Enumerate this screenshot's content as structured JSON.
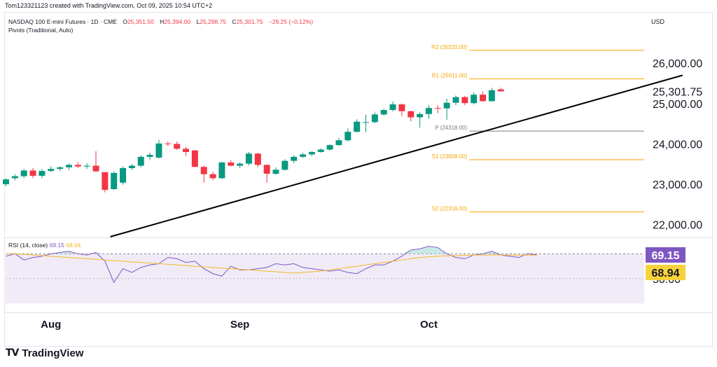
{
  "header": {
    "credit": "Tom123321123 created with TradingView.com, Oct 09, 2025 10:54 UTC+2",
    "symbol": "NASDAQ 100 E-mini Futures · 1D · CME",
    "ohlc": {
      "o_label": "O",
      "o": "25,351.50",
      "h_label": "H",
      "h": "25,394.00",
      "l_label": "L",
      "l": "25,298.75",
      "c_label": "C",
      "c": "25,301.75",
      "change": "−29.25 (−0.12%)"
    },
    "indicator": "Pivots (Traditional, Auto)",
    "currency": "USD"
  },
  "rsi_legend": {
    "label": "RSI (14, close)",
    "rsi": "69.15",
    "ma": "68.94"
  },
  "colors": {
    "up": "#089981",
    "down": "#f23645",
    "pivot_sr": "#f7a600",
    "pivot_p": "#787b86",
    "trendline": "#000000",
    "rsi": "#7e57c2",
    "rsi_ma": "#f7b924",
    "rsi_band": "#ede7f6"
  },
  "brand": {
    "mark": "TV",
    "name": "TradingView"
  },
  "chart_data": [
    {
      "type": "candlestick",
      "ylim": [
        21700,
        26750
      ],
      "y_ticks": [
        {
          "v": 22000,
          "label": "22,000.00"
        },
        {
          "v": 23000,
          "label": "23,000.00"
        },
        {
          "v": 24000,
          "label": "24,000.00"
        },
        {
          "v": 25000,
          "label": "25,000.00"
        },
        {
          "v": 26000,
          "label": "26,000.00"
        }
      ],
      "x_ticks": [
        {
          "i": 5,
          "label": "Aug"
        },
        {
          "i": 26,
          "label": "Sep"
        },
        {
          "i": 47,
          "label": "Oct"
        }
      ],
      "last_price": {
        "value": 25301.75,
        "label": "25,301.75"
      },
      "candles": [
        [
          23000,
          23150,
          22950,
          23120
        ],
        [
          23150,
          23250,
          23100,
          23200
        ],
        [
          23200,
          23380,
          23150,
          23340
        ],
        [
          23340,
          23400,
          23150,
          23210
        ],
        [
          23210,
          23380,
          23150,
          23330
        ],
        [
          23330,
          23450,
          23300,
          23380
        ],
        [
          23380,
          23450,
          23330,
          23420
        ],
        [
          23420,
          23520,
          23350,
          23480
        ],
        [
          23480,
          23550,
          23400,
          23440
        ],
        [
          23440,
          23520,
          23380,
          23460
        ],
        [
          23460,
          23820,
          23300,
          23320
        ],
        [
          23300,
          23300,
          22800,
          22860
        ],
        [
          22880,
          23320,
          22860,
          23280
        ],
        [
          23040,
          23450,
          22990,
          23400
        ],
        [
          23400,
          23500,
          23350,
          23460
        ],
        [
          23460,
          23720,
          23420,
          23680
        ],
        [
          23680,
          23780,
          23600,
          23730
        ],
        [
          23660,
          24100,
          23640,
          24010
        ],
        [
          24010,
          24060,
          23950,
          24000
        ],
        [
          24000,
          24060,
          23850,
          23880
        ],
        [
          23880,
          23930,
          23700,
          23800
        ],
        [
          23840,
          23850,
          23420,
          23430
        ],
        [
          23430,
          23460,
          23040,
          23250
        ],
        [
          23250,
          23310,
          23100,
          23150
        ],
        [
          23150,
          23560,
          23130,
          23540
        ],
        [
          23540,
          23600,
          23440,
          23460
        ],
        [
          23460,
          23540,
          23400,
          23510
        ],
        [
          23510,
          23800,
          23460,
          23760
        ],
        [
          23760,
          23780,
          23420,
          23480
        ],
        [
          23480,
          23490,
          23040,
          23260
        ],
        [
          23260,
          23420,
          23230,
          23360
        ],
        [
          23360,
          23620,
          23330,
          23580
        ],
        [
          23580,
          23720,
          23520,
          23680
        ],
        [
          23680,
          23780,
          23650,
          23740
        ],
        [
          23740,
          23820,
          23700,
          23800
        ],
        [
          23800,
          23890,
          23780,
          23860
        ],
        [
          23860,
          23990,
          23830,
          23970
        ],
        [
          23970,
          24150,
          23950,
          24090
        ],
        [
          24090,
          24380,
          24060,
          24300
        ],
        [
          24300,
          24610,
          24280,
          24550
        ],
        [
          24540,
          24720,
          24290,
          24540
        ],
        [
          24540,
          24780,
          24510,
          24730
        ],
        [
          24730,
          24870,
          24700,
          24840
        ],
        [
          24840,
          25050,
          24810,
          24980
        ],
        [
          24980,
          25000,
          24690,
          24810
        ],
        [
          24810,
          24820,
          24560,
          24660
        ],
        [
          24660,
          24780,
          24400,
          24740
        ],
        [
          24740,
          24960,
          24620,
          24890
        ],
        [
          24890,
          24960,
          24760,
          24880
        ],
        [
          24880,
          25120,
          24600,
          25020
        ],
        [
          25020,
          25200,
          24960,
          25160
        ],
        [
          25160,
          25190,
          24960,
          25010
        ],
        [
          25010,
          25280,
          24980,
          25220
        ],
        [
          25220,
          25300,
          25040,
          25060
        ],
        [
          25060,
          25390,
          25040,
          25330
        ],
        [
          25351.5,
          25394,
          25298.75,
          25301.75
        ]
      ],
      "pivots": [
        {
          "label": "R2 (26320.00)",
          "value": 26320,
          "kind": "sr"
        },
        {
          "label": "R1 (25611.00)",
          "value": 25611,
          "kind": "sr"
        },
        {
          "label": "P (24318.00)",
          "value": 24318,
          "kind": "p"
        },
        {
          "label": "S1 (23609.00)",
          "value": 23609,
          "kind": "sr"
        },
        {
          "label": "S2 (22316.00)",
          "value": 22316,
          "kind": "sr"
        }
      ],
      "trendline": {
        "x0": 11.6,
        "y0": 21700,
        "x1": 75.2,
        "y1": 25700
      }
    },
    {
      "type": "line",
      "title": "RSI (14, close)",
      "ylim": [
        24,
        82
      ],
      "y_ticks": [
        {
          "v": 50,
          "label": "50.00"
        },
        {
          "v": 70,
          "label": "70.00"
        }
      ],
      "band": [
        30,
        70
      ],
      "series": [
        {
          "name": "RSI",
          "values": [
            68,
            70,
            65,
            67,
            68,
            70,
            71,
            72,
            70,
            69,
            71,
            64,
            47,
            58,
            55,
            59,
            61,
            62,
            67,
            66,
            63,
            64,
            58,
            54,
            52,
            60,
            57,
            57,
            58,
            59,
            62,
            61,
            62,
            59,
            58,
            57,
            56,
            57,
            55,
            54,
            58,
            61,
            61,
            64,
            68,
            73,
            74,
            76,
            75,
            70,
            67,
            66,
            69,
            70,
            72,
            69,
            68,
            67,
            70,
            69.15
          ]
        },
        {
          "name": "MA",
          "values": [
            70,
            70,
            69.5,
            69,
            68.5,
            68,
            67.5,
            67,
            66.5,
            66,
            65.5,
            65,
            64.5,
            64,
            63.5,
            63,
            62.5,
            62,
            61.5,
            61,
            60.5,
            60,
            59.5,
            59,
            58.5,
            58,
            57.5,
            57,
            56.5,
            56,
            55.5,
            55,
            54.5,
            55,
            55.5,
            56,
            57,
            58,
            59,
            60,
            61,
            62,
            63,
            64,
            65,
            66,
            67,
            67.5,
            68,
            68.3,
            68.5,
            68.7,
            68.9,
            69,
            69.1,
            69,
            68.95,
            68.9,
            68.92,
            68.94
          ]
        }
      ],
      "last_values": [
        {
          "label": "69.15",
          "value": 69.15,
          "color": "#7e57c2"
        },
        {
          "label": "68.94",
          "value": 68.94,
          "color": "#f7d23c"
        }
      ]
    }
  ],
  "time_axis": {
    "labels": [
      "Aug",
      "Sep",
      "Oct"
    ]
  }
}
